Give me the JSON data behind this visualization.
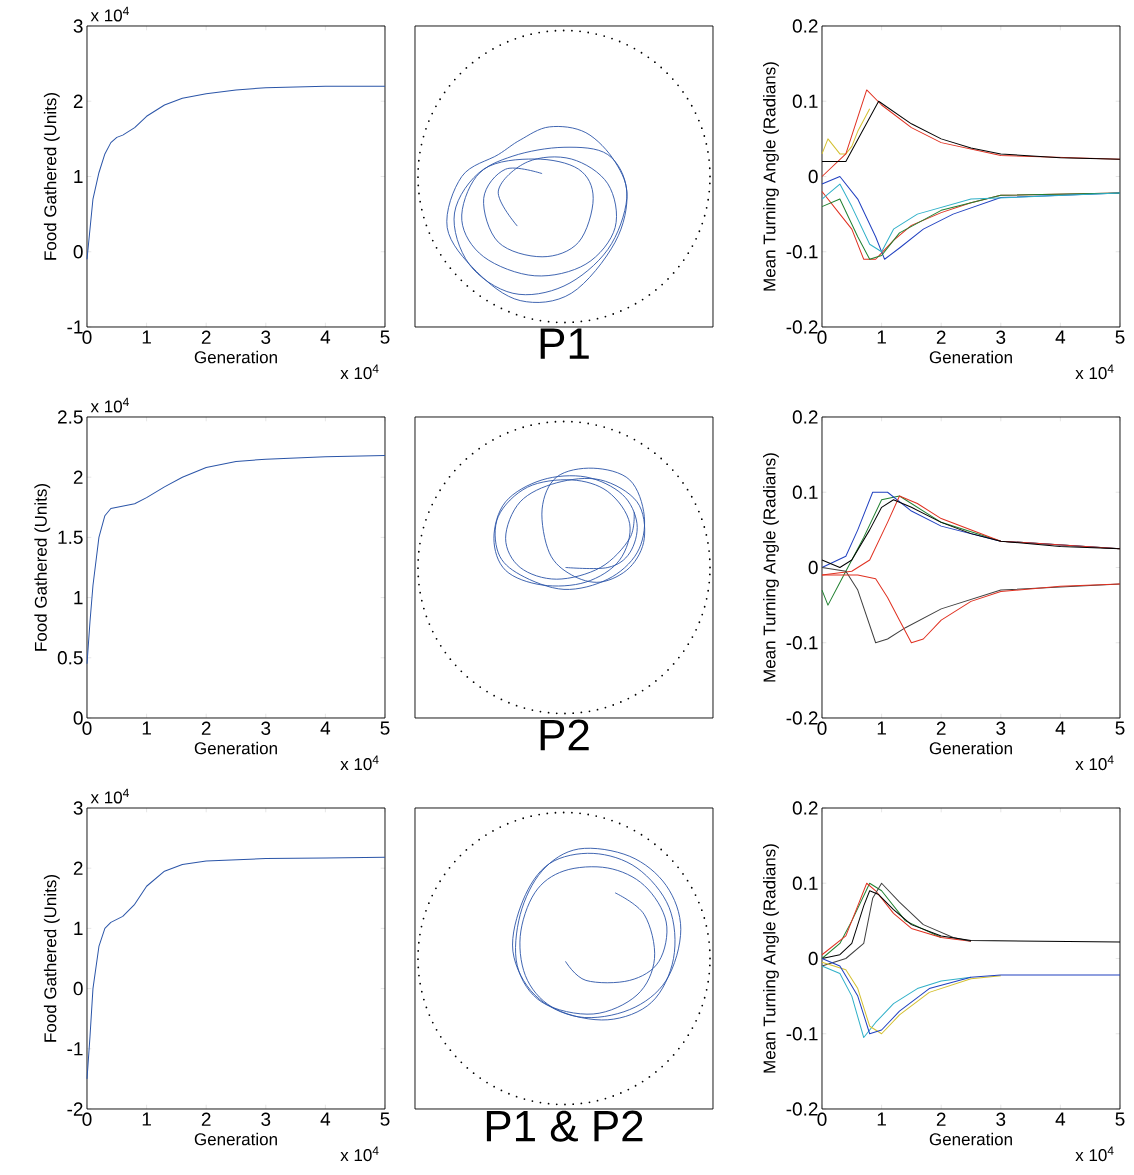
{
  "chart_data": [
    {
      "type": "line",
      "xlabel": "Generation",
      "ylabel": "Food Gathered (Units)",
      "annotations": [
        "x 10$^{4}$",
        "x 10$^{4}$"
      ],
      "xlim": [
        0,
        5
      ],
      "xticks": [
        0,
        1,
        2,
        3,
        4,
        5
      ],
      "ylim": [
        -1,
        3
      ],
      "yticks": [
        -1,
        0,
        1,
        2,
        3
      ],
      "color": "#2b55a8",
      "x": [
        0,
        0.05,
        0.1,
        0.2,
        0.3,
        0.4,
        0.5,
        0.6,
        0.8,
        1.0,
        1.3,
        1.6,
        2,
        2.5,
        3,
        4,
        5
      ],
      "values": [
        -0.1,
        0.3,
        0.7,
        1.05,
        1.3,
        1.45,
        1.52,
        1.55,
        1.65,
        1.8,
        1.95,
        2.04,
        2.1,
        2.15,
        2.18,
        2.2,
        2.2
      ]
    },
    {
      "type": "other",
      "title": "P1"
    },
    {
      "type": "line",
      "xlabel": "Generation",
      "ylabel": "Mean Turning Angle (Radians)",
      "annotations": [
        "x 10$^{4}$"
      ],
      "xlim": [
        0,
        5
      ],
      "xticks": [
        0,
        1,
        2,
        3,
        4,
        5
      ],
      "ylim": [
        -0.2,
        0.2
      ],
      "yticks": [
        -0.2,
        -0.1,
        0,
        0.1,
        0.2
      ],
      "series": [
        {
          "color": "#d4c030",
          "x": [
            0,
            0.1,
            0.2,
            0.3,
            0.4,
            0.5,
            0.6,
            0.8
          ],
          "values": [
            0.03,
            0.05,
            0.04,
            0.03,
            0.03,
            0.04,
            0.06,
            0.09
          ]
        },
        {
          "color": "#e03020",
          "x": [
            0,
            0.4,
            0.75,
            1,
            1.5,
            2,
            3,
            5
          ],
          "values": [
            0.0,
            0.03,
            0.115,
            0.095,
            0.065,
            0.045,
            0.028,
            0.023
          ]
        },
        {
          "color": "#000000",
          "x": [
            0,
            0.4,
            0.95,
            1.5,
            2,
            2.5,
            3,
            4,
            5
          ],
          "values": [
            0.02,
            0.02,
            0.1,
            0.07,
            0.05,
            0.038,
            0.03,
            0.025,
            0.023
          ]
        },
        {
          "color": "#e03020",
          "x": [
            0,
            0.3,
            0.5,
            0.7,
            0.9,
            1.2,
            1.5,
            2,
            2.5,
            3,
            5
          ],
          "values": [
            -0.02,
            -0.05,
            -0.07,
            -0.11,
            -0.11,
            -0.085,
            -0.065,
            -0.048,
            -0.035,
            -0.025,
            -0.022
          ]
        },
        {
          "color": "#2040c0",
          "x": [
            0,
            0.3,
            0.6,
            0.9,
            1.05,
            1.3,
            1.7,
            2.2,
            3,
            5
          ],
          "values": [
            -0.01,
            0.0,
            -0.03,
            -0.08,
            -0.11,
            -0.095,
            -0.07,
            -0.05,
            -0.028,
            -0.022
          ]
        },
        {
          "color": "#208030",
          "x": [
            0,
            0.3,
            0.6,
            0.8,
            1.0,
            1.3,
            2,
            3,
            5
          ],
          "values": [
            -0.04,
            -0.03,
            -0.08,
            -0.11,
            -0.105,
            -0.075,
            -0.045,
            -0.025,
            -0.022
          ]
        },
        {
          "color": "#30b0c8",
          "x": [
            0,
            0.3,
            0.5,
            0.8,
            1.0,
            1.2,
            1.6,
            2.5,
            5
          ],
          "values": [
            -0.03,
            -0.01,
            -0.04,
            -0.09,
            -0.1,
            -0.07,
            -0.05,
            -0.03,
            -0.022
          ]
        }
      ]
    },
    {
      "type": "line",
      "xlabel": "Generation",
      "ylabel": "Food Gathered (Units)",
      "annotations": [
        "x 10$^{4}$",
        "x 10$^{4}$"
      ],
      "xlim": [
        0,
        5
      ],
      "xticks": [
        0,
        1,
        2,
        3,
        4,
        5
      ],
      "ylim": [
        0,
        2.5
      ],
      "yticks": [
        0,
        0.5,
        1,
        1.5,
        2,
        2.5
      ],
      "color": "#2b55a8",
      "x": [
        0,
        0.05,
        0.1,
        0.2,
        0.3,
        0.4,
        0.6,
        0.8,
        1.0,
        1.3,
        1.6,
        2,
        2.5,
        3,
        4,
        5
      ],
      "values": [
        0.45,
        0.8,
        1.1,
        1.5,
        1.68,
        1.74,
        1.76,
        1.78,
        1.83,
        1.92,
        2.0,
        2.08,
        2.13,
        2.15,
        2.17,
        2.18
      ]
    },
    {
      "type": "other",
      "title": "P2"
    },
    {
      "type": "line",
      "xlabel": "Generation",
      "ylabel": "Mean Turning Angle (Radians)",
      "annotations": [
        "x 10$^{4}$"
      ],
      "xlim": [
        0,
        5
      ],
      "xticks": [
        0,
        1,
        2,
        3,
        4,
        5
      ],
      "ylim": [
        -0.2,
        0.2
      ],
      "yticks": [
        -0.2,
        -0.1,
        0,
        0.1,
        0.2
      ],
      "series": [
        {
          "color": "#208030",
          "x": [
            0,
            0.1,
            0.3,
            0.7,
            1.0,
            1.3,
            2,
            3,
            5
          ],
          "values": [
            -0.03,
            -0.05,
            -0.02,
            0.04,
            0.09,
            0.095,
            0.06,
            0.035,
            0.025
          ]
        },
        {
          "color": "#2040c0",
          "x": [
            0,
            0.4,
            0.6,
            0.85,
            1.1,
            1.5,
            2,
            3,
            5
          ],
          "values": [
            0.0,
            0.015,
            0.05,
            0.1,
            0.1,
            0.075,
            0.055,
            0.035,
            0.025
          ]
        },
        {
          "color": "#e03020",
          "x": [
            0,
            0.5,
            0.8,
            1.1,
            1.3,
            1.6,
            2,
            3,
            5
          ],
          "values": [
            -0.01,
            -0.005,
            0.01,
            0.06,
            0.095,
            0.085,
            0.065,
            0.035,
            0.025
          ]
        },
        {
          "color": "#000000",
          "x": [
            0,
            0.3,
            0.5,
            0.8,
            1.0,
            1.2,
            1.5,
            2,
            2.5,
            3,
            4,
            5
          ],
          "values": [
            0.01,
            0.0,
            0.01,
            0.05,
            0.08,
            0.09,
            0.08,
            0.06,
            0.045,
            0.035,
            0.028,
            0.025
          ]
        },
        {
          "color": "#404040",
          "x": [
            0,
            0.4,
            0.6,
            0.9,
            1.1,
            1.4,
            2,
            3,
            4,
            5
          ],
          "values": [
            0.0,
            -0.005,
            -0.03,
            -0.1,
            -0.095,
            -0.08,
            -0.055,
            -0.03,
            null,
            -0.022
          ]
        },
        {
          "color": "#e03020",
          "x": [
            0,
            0.6,
            0.9,
            1.1,
            1.3,
            1.5,
            1.7,
            2,
            2.5,
            3,
            4,
            5
          ],
          "values": [
            -0.01,
            -0.01,
            -0.015,
            -0.04,
            -0.07,
            -0.1,
            -0.095,
            -0.07,
            -0.045,
            -0.032,
            -0.025,
            -0.022
          ]
        }
      ]
    },
    {
      "type": "line",
      "xlabel": "Generation",
      "ylabel": "Food Gathered (Units)",
      "annotations": [
        "x 10$^{4}$",
        "x 10$^{4}$"
      ],
      "xlim": [
        0,
        5
      ],
      "xticks": [
        0,
        1,
        2,
        3,
        4,
        5
      ],
      "ylim": [
        -2,
        3
      ],
      "yticks": [
        -2,
        -1,
        0,
        1,
        2,
        3
      ],
      "color": "#2b55a8",
      "x": [
        0,
        0.05,
        0.1,
        0.2,
        0.3,
        0.4,
        0.6,
        0.8,
        1.0,
        1.3,
        1.6,
        2,
        3,
        4,
        5
      ],
      "values": [
        -1.5,
        -0.8,
        0.0,
        0.7,
        1.0,
        1.1,
        1.2,
        1.4,
        1.7,
        1.95,
        2.06,
        2.12,
        2.16,
        2.17,
        2.18
      ]
    },
    {
      "type": "other",
      "title": "P1 & P2"
    },
    {
      "type": "line",
      "xlabel": "Generation",
      "ylabel": "Mean Turning Angle (Radians)",
      "annotations": [
        "x 10$^{4}$"
      ],
      "xlim": [
        0,
        5
      ],
      "xticks": [
        0,
        1,
        2,
        3,
        4,
        5
      ],
      "ylim": [
        -0.2,
        0.2
      ],
      "yticks": [
        -0.2,
        -0.1,
        0,
        0.1,
        0.2
      ],
      "series": [
        {
          "color": "#208030",
          "x": [
            0,
            0.3,
            0.5,
            0.8,
            1.0,
            1.4,
            2
          ],
          "values": [
            0.0,
            0.02,
            0.05,
            0.1,
            0.09,
            0.05,
            0.028
          ]
        },
        {
          "color": "#e03020",
          "x": [
            0,
            0.4,
            0.6,
            0.75,
            0.9,
            1.2,
            1.5,
            2,
            2.5
          ],
          "values": [
            0.005,
            0.03,
            0.07,
            0.1,
            0.09,
            0.06,
            0.04,
            0.028,
            0.023
          ]
        },
        {
          "color": "#404040",
          "x": [
            0,
            0.4,
            0.7,
            0.85,
            1.0,
            1.3,
            1.7,
            2.2,
            2.5
          ],
          "values": [
            -0.01,
            0.0,
            0.02,
            0.08,
            0.1,
            0.075,
            0.045,
            0.028,
            0.023
          ]
        },
        {
          "color": "#000000",
          "x": [
            0,
            0.3,
            0.5,
            0.7,
            0.8,
            0.95,
            1.2,
            1.5,
            2,
            2.5,
            5
          ],
          "values": [
            0.0,
            0.005,
            0.02,
            0.07,
            0.09,
            0.085,
            0.065,
            0.045,
            0.03,
            0.024,
            0.022
          ]
        },
        {
          "color": "#30b0c8",
          "x": [
            0,
            0.3,
            0.5,
            0.7,
            0.9,
            1.2,
            1.6,
            2,
            2.5
          ],
          "values": [
            -0.01,
            -0.02,
            -0.05,
            -0.105,
            -0.085,
            -0.06,
            -0.04,
            -0.03,
            -0.025
          ]
        },
        {
          "color": "#d4c030",
          "x": [
            0,
            0.4,
            0.6,
            0.8,
            1.0,
            1.3,
            1.8,
            2.5,
            3
          ],
          "values": [
            -0.005,
            -0.015,
            -0.04,
            -0.09,
            -0.1,
            -0.075,
            -0.045,
            -0.027,
            -0.023
          ]
        },
        {
          "color": "#2040c0",
          "x": [
            0,
            0.3,
            0.6,
            0.8,
            1.0,
            1.3,
            1.8,
            2.5,
            3,
            5
          ],
          "values": [
            0.0,
            -0.01,
            -0.05,
            -0.1,
            -0.095,
            -0.07,
            -0.04,
            -0.025,
            -0.022,
            -0.022
          ]
        }
      ]
    }
  ]
}
